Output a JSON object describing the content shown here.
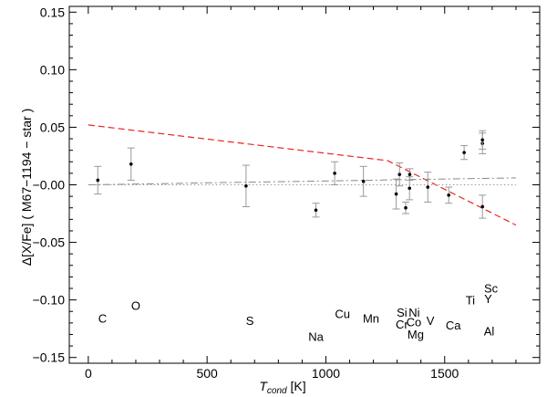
{
  "chart_data": {
    "type": "scatter",
    "xlabel": "T",
    "xlabel_sub": "cond",
    "xlabel_unit": " [K]",
    "ylabel": "Δ[X/Fe] ( M67−1194 − star )",
    "xlim": [
      -80,
      1900
    ],
    "ylim": [
      -0.155,
      0.155
    ],
    "x_ticks": [
      0,
      500,
      1000,
      1500
    ],
    "x_tick_labels": [
      "0",
      "500",
      "1000",
      "1500"
    ],
    "y_ticks": [
      -0.15,
      -0.1,
      -0.05,
      0.0,
      0.05,
      0.1,
      0.15
    ],
    "y_tick_labels": [
      "−0.15",
      "−0.10",
      "−0.05",
      "−0.00",
      "0.05",
      "0.10",
      "0.15"
    ],
    "grid": false,
    "points": [
      {
        "x": 40,
        "y": 0.004,
        "err": 0.012
      },
      {
        "x": 180,
        "y": 0.018,
        "err": 0.014
      },
      {
        "x": 664,
        "y": -0.001,
        "err": 0.018
      },
      {
        "x": 958,
        "y": -0.022,
        "err": 0.006
      },
      {
        "x": 1037,
        "y": 0.01,
        "err": 0.01
      },
      {
        "x": 1158,
        "y": 0.003,
        "err": 0.013
      },
      {
        "x": 1296,
        "y": -0.008,
        "err": 0.013
      },
      {
        "x": 1310,
        "y": 0.009,
        "err": 0.01
      },
      {
        "x": 1336,
        "y": -0.02,
        "err": 0.005
      },
      {
        "x": 1352,
        "y": -0.003,
        "err": 0.01
      },
      {
        "x": 1353,
        "y": 0.009,
        "err": 0.005
      },
      {
        "x": 1429,
        "y": -0.002,
        "err": 0.013
      },
      {
        "x": 1517,
        "y": -0.009,
        "err": 0.007
      },
      {
        "x": 1582,
        "y": 0.028,
        "err": 0.006
      },
      {
        "x": 1659,
        "y": -0.019,
        "err": 0.01
      },
      {
        "x": 1659,
        "y": 0.036,
        "err": 0.009
      },
      {
        "x": 1659,
        "y": 0.039,
        "err": 0.008
      }
    ],
    "series": [
      {
        "style": "dashed-red",
        "color": "#e8251f",
        "x": [
          0,
          1260,
          1800
        ],
        "y": [
          0.052,
          0.021,
          -0.035
        ]
      },
      {
        "style": "dash-dot-gray",
        "color": "#888888",
        "x": [
          0,
          1800
        ],
        "y": [
          0.0,
          0.006
        ]
      },
      {
        "style": "dotted-gray",
        "color": "#999999",
        "x": [
          0,
          1800
        ],
        "y": [
          0.0,
          0.0
        ]
      }
    ],
    "element_labels": [
      {
        "text": "C",
        "x": 60,
        "y": -0.117,
        "size": "normal"
      },
      {
        "text": "O",
        "x": 200,
        "y": -0.106,
        "size": "large"
      },
      {
        "text": "S",
        "x": 680,
        "y": -0.119,
        "size": "normal"
      },
      {
        "text": "Na",
        "x": 958,
        "y": -0.133,
        "size": "normal"
      },
      {
        "text": "Cu",
        "x": 1070,
        "y": -0.113,
        "size": "normal"
      },
      {
        "text": "Mn",
        "x": 1190,
        "y": -0.117,
        "size": "normal"
      },
      {
        "text": "Si",
        "x": 1320,
        "y": -0.112,
        "size": "normal"
      },
      {
        "text": "Ni",
        "x": 1372,
        "y": -0.112,
        "size": "normal"
      },
      {
        "text": "Co",
        "x": 1370,
        "y": -0.12,
        "size": "normal"
      },
      {
        "text": "Cr",
        "x": 1320,
        "y": -0.122,
        "size": "normal"
      },
      {
        "text": "V",
        "x": 1440,
        "y": -0.119,
        "size": "normal"
      },
      {
        "text": "Mg",
        "x": 1378,
        "y": -0.131,
        "size": "normal"
      },
      {
        "text": "Ca",
        "x": 1536,
        "y": -0.123,
        "size": "normal"
      },
      {
        "text": "Ti",
        "x": 1608,
        "y": -0.101,
        "size": "normal"
      },
      {
        "text": "Y",
        "x": 1683,
        "y": -0.1,
        "size": "normal"
      },
      {
        "text": "Sc",
        "x": 1695,
        "y": -0.091,
        "size": "normal"
      },
      {
        "text": "Al",
        "x": 1687,
        "y": -0.128,
        "size": "normal"
      }
    ]
  }
}
